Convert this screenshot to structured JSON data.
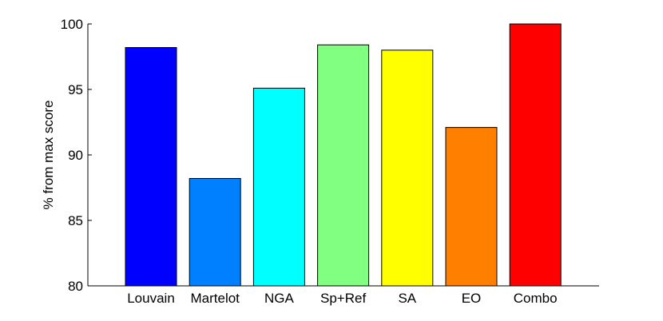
{
  "chart_data": {
    "type": "bar",
    "title": "",
    "xlabel": "",
    "ylabel": "% from max score",
    "ylim": [
      80,
      100
    ],
    "yticks": [
      80,
      85,
      90,
      95,
      100
    ],
    "grid": false,
    "categories": [
      "Louvain",
      "Martelot",
      "NGA",
      "Sp+Ref",
      "SA",
      "EO",
      "Combo"
    ],
    "values": [
      98.2,
      88.2,
      95.1,
      98.4,
      98.0,
      92.1,
      100.0
    ],
    "colors": [
      "#0000ff",
      "#0080ff",
      "#00ffff",
      "#80ff80",
      "#ffff00",
      "#ff8000",
      "#ff0000"
    ]
  }
}
